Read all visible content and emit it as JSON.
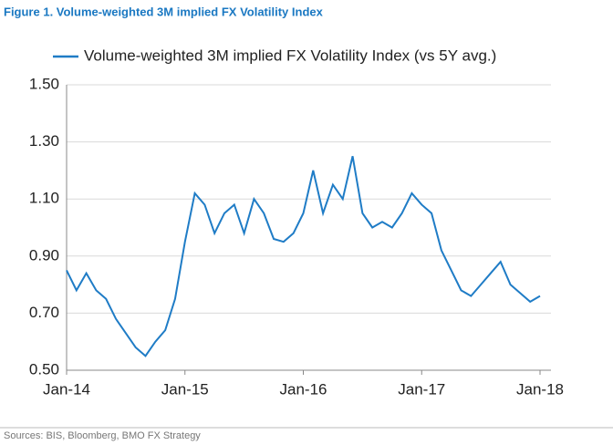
{
  "figure_title": "Figure 1. Volume-weighted 3M implied FX Volatility Index",
  "source": "Sources: BIS, Bloomberg, BMO FX Strategy",
  "chart_data": {
    "type": "line",
    "x": [
      "2014-01",
      "2014-02",
      "2014-03",
      "2014-04",
      "2014-05",
      "2014-06",
      "2014-07",
      "2014-08",
      "2014-09",
      "2014-10",
      "2014-11",
      "2014-12",
      "2015-01",
      "2015-02",
      "2015-03",
      "2015-04",
      "2015-05",
      "2015-06",
      "2015-07",
      "2015-08",
      "2015-09",
      "2015-10",
      "2015-11",
      "2015-12",
      "2016-01",
      "2016-02",
      "2016-03",
      "2016-04",
      "2016-05",
      "2016-06",
      "2016-07",
      "2016-08",
      "2016-09",
      "2016-10",
      "2016-11",
      "2016-12",
      "2017-01",
      "2017-02",
      "2017-03",
      "2017-04",
      "2017-05",
      "2017-06",
      "2017-07",
      "2017-08",
      "2017-09",
      "2017-10",
      "2017-11",
      "2017-12",
      "2018-01"
    ],
    "series": [
      {
        "name": "Volume-weighted 3M implied FX Volatility Index (vs 5Y avg.)",
        "color": "#1f7cc6",
        "values": [
          0.85,
          0.78,
          0.84,
          0.78,
          0.75,
          0.68,
          0.63,
          0.58,
          0.55,
          0.6,
          0.64,
          0.75,
          0.95,
          1.12,
          1.08,
          0.98,
          1.05,
          1.08,
          0.98,
          1.1,
          1.05,
          0.96,
          0.95,
          0.98,
          1.05,
          1.2,
          1.05,
          1.15,
          1.1,
          1.25,
          1.05,
          1.0,
          1.02,
          1.0,
          1.05,
          1.12,
          1.08,
          1.05,
          0.92,
          0.85,
          0.78,
          0.76,
          0.8,
          0.84,
          0.88,
          0.8,
          0.77,
          0.74,
          0.76
        ]
      }
    ],
    "xlim": [
      "2014-01",
      "2018-01"
    ],
    "xticks": [
      {
        "value": "2014-01",
        "label": "Jan-14"
      },
      {
        "value": "2015-01",
        "label": "Jan-15"
      },
      {
        "value": "2016-01",
        "label": "Jan-16"
      },
      {
        "value": "2017-01",
        "label": "Jan-17"
      },
      {
        "value": "2018-01",
        "label": "Jan-18"
      }
    ],
    "ylim": [
      0.5,
      1.5
    ],
    "yticks": [
      {
        "value": 0.5,
        "label": "0.50"
      },
      {
        "value": 0.7,
        "label": "0.70"
      },
      {
        "value": 0.9,
        "label": "0.90"
      },
      {
        "value": 1.1,
        "label": "1.10"
      },
      {
        "value": 1.3,
        "label": "1.30"
      },
      {
        "value": 1.5,
        "label": "1.50"
      }
    ],
    "grid": true,
    "legend": "top"
  }
}
